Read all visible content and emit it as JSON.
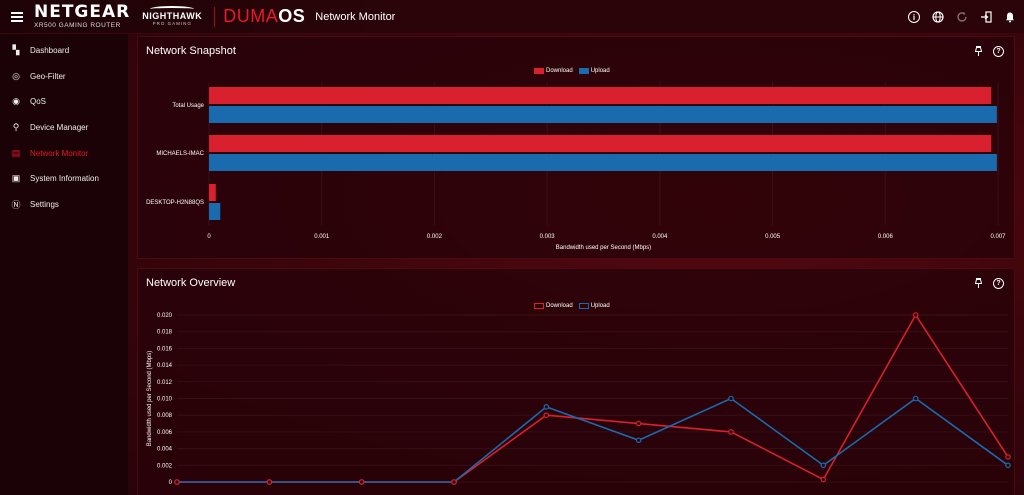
{
  "header": {
    "brand": "NETGEAR",
    "brand_sub": "XR500 GAMING ROUTER",
    "nighthawk": "NIGHTHAWK",
    "nighthawk_sub": "PRO GAMING",
    "duma_part1": "DUMA",
    "duma_part2": "OS",
    "page_title": "Network Monitor",
    "icons": [
      "info-icon",
      "globe-icon",
      "refresh-icon",
      "logout-icon",
      "bell-icon"
    ]
  },
  "sidebar": {
    "items": [
      {
        "label": "Dashboard",
        "icon": "dashboard-icon",
        "glyph": "▚"
      },
      {
        "label": "Geo-Filter",
        "icon": "geo-filter-icon",
        "glyph": "◎"
      },
      {
        "label": "QoS",
        "icon": "qos-icon",
        "glyph": "◉"
      },
      {
        "label": "Device Manager",
        "icon": "device-manager-icon",
        "glyph": "⚲"
      },
      {
        "label": "Network Monitor",
        "icon": "network-monitor-icon",
        "glyph": "▤"
      },
      {
        "label": "System Information",
        "icon": "system-info-icon",
        "glyph": "▣"
      },
      {
        "label": "Settings",
        "icon": "settings-icon",
        "glyph": "Ⓝ"
      }
    ],
    "active_index": 4
  },
  "colors": {
    "download": "#d9202f",
    "upload": "#1a6aae",
    "active": "#e8192c"
  },
  "snapshot": {
    "title": "Network Snapshot",
    "legend": {
      "download": "Download",
      "upload": "Upload"
    },
    "chart_data": {
      "type": "bar",
      "orientation": "horizontal",
      "categories": [
        "Total Usage",
        "MICHAELS-IMAC",
        "DESKTOP-H2N88QS"
      ],
      "series": [
        {
          "name": "Download",
          "values": [
            0.00694,
            0.00694,
            6e-05
          ]
        },
        {
          "name": "Upload",
          "values": [
            0.00699,
            0.00699,
            0.0001
          ]
        }
      ],
      "xlim": [
        0,
        0.007
      ],
      "xticks": [
        "0",
        "0.001",
        "0.002",
        "0.003",
        "0.004",
        "0.005",
        "0.006",
        "0.007"
      ],
      "xlabel": "Bandwidth used per Second (Mbps)"
    }
  },
  "overview": {
    "title": "Network Overview",
    "legend": {
      "download": "Download",
      "upload": "Upload"
    },
    "chart_data": {
      "type": "line",
      "x": [
        0,
        1,
        2,
        3,
        4,
        5,
        6,
        7,
        8,
        9
      ],
      "series": [
        {
          "name": "Download",
          "values": [
            0,
            0,
            0,
            0,
            0.008,
            0.007,
            0.006,
            0.0003,
            0.02,
            0.003
          ]
        },
        {
          "name": "Upload",
          "values": [
            0,
            0,
            0,
            0,
            0.009,
            0.005,
            0.01,
            0.002,
            0.01,
            0.002
          ]
        }
      ],
      "ylim": [
        0,
        0.02
      ],
      "yticks": [
        "0",
        "0.002",
        "0.004",
        "0.006",
        "0.008",
        "0.010",
        "0.012",
        "0.014",
        "0.016",
        "0.018",
        "0.020"
      ],
      "ylabel": "Bandwidth used per Second (Mbps)"
    }
  }
}
